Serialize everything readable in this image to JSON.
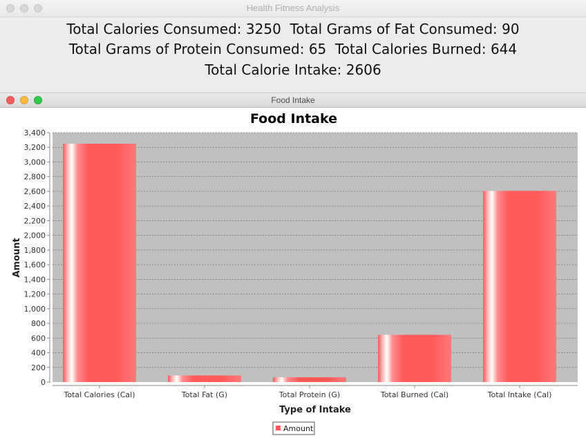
{
  "outer_window": {
    "title": "Health Fitness Analysis",
    "summary": {
      "line1": "Total Calories Consumed: 3250  Total Grams of Fat Consumed: 90",
      "line2": "Total Grams of Protein Consumed: 65  Total Calories Burned: 644",
      "line3": "Total Calorie Intake: 2606"
    }
  },
  "chart_window": {
    "title": "Food Intake"
  },
  "colors": {
    "bar": "#ff5a5a",
    "plot_background": "#c0c0c0",
    "gridline": "#6e6e6e"
  },
  "chart_data": {
    "type": "bar",
    "title": "Food Intake",
    "xlabel": "Type of Intake",
    "ylabel": "Amount",
    "categories": [
      "Total Calories (Cal)",
      "Total Fat (G)",
      "Total Protein (G)",
      "Total Burned (Cal)",
      "Total Intake (Cal)"
    ],
    "series": [
      {
        "name": "Amount",
        "values": [
          3250,
          90,
          65,
          644,
          2606
        ]
      }
    ],
    "ylim": [
      0,
      3400
    ],
    "yticks": [
      0,
      200,
      400,
      600,
      800,
      1000,
      1200,
      1400,
      1600,
      1800,
      2000,
      2200,
      2400,
      2600,
      2800,
      3000,
      3200,
      3400
    ],
    "ytick_labels": [
      "0",
      "200",
      "400",
      "600",
      "800",
      "1,000",
      "1,200",
      "1,400",
      "1,600",
      "1,800",
      "2,000",
      "2,200",
      "2,400",
      "2,600",
      "2,800",
      "3,000",
      "3,200",
      "3,400"
    ],
    "grid": true,
    "legend": "bottom-center"
  }
}
